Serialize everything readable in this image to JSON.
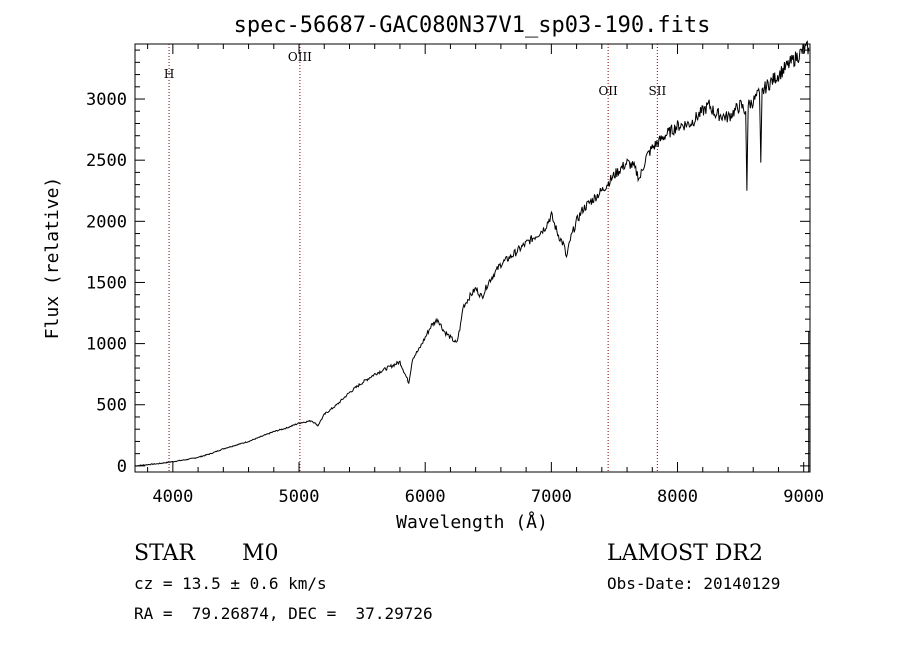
{
  "chart_data": {
    "type": "line",
    "title": "spec-56687-GAC080N37V1_sp03-190.fits",
    "xlabel": "Wavelength (Å)",
    "ylabel": "Flux (relative)",
    "xlim": [
      3700,
      9050
    ],
    "ylim": [
      -50,
      3450
    ],
    "x_ticks": [
      4000,
      5000,
      6000,
      7000,
      8000,
      9000
    ],
    "y_ticks": [
      0,
      500,
      1000,
      1500,
      2000,
      2500,
      3000
    ],
    "grid": false,
    "line_color": "#000000",
    "marker_color": "#8b0000",
    "spectral_lines": [
      {
        "label": "H",
        "wavelength": 3970
      },
      {
        "label": "OIII",
        "wavelength": 5007
      },
      {
        "label": "OII",
        "wavelength": 7450
      },
      {
        "label": "SII",
        "wavelength": 7840
      }
    ],
    "series": [
      {
        "x": [
          3700,
          3800,
          3900,
          4000,
          4100,
          4200,
          4300,
          4400,
          4500,
          4600,
          4700,
          4800,
          4900,
          5000,
          5050,
          5100,
          5150,
          5200,
          5300,
          5400,
          5500,
          5600,
          5700,
          5800,
          5870,
          5900,
          5950,
          6000,
          6050,
          6100,
          6150,
          6200,
          6250,
          6280,
          6300,
          6350,
          6400,
          6450,
          6500,
          6600,
          6700,
          6800,
          6900,
          6950,
          7000,
          7050,
          7100,
          7120,
          7150,
          7200,
          7250,
          7300,
          7400,
          7500,
          7550,
          7600,
          7650,
          7700,
          7750,
          7800,
          7900,
          8000,
          8100,
          8200,
          8250,
          8300,
          8400,
          8500,
          8540,
          8550,
          8560,
          8600,
          8650,
          8660,
          8670,
          8700,
          8800,
          8900,
          9000,
          9040
        ],
        "y": [
          0,
          10,
          20,
          35,
          50,
          70,
          100,
          140,
          170,
          200,
          240,
          280,
          310,
          350,
          360,
          370,
          330,
          420,
          500,
          600,
          680,
          750,
          800,
          850,
          680,
          880,
          950,
          1050,
          1150,
          1200,
          1100,
          1050,
          1000,
          1150,
          1300,
          1380,
          1450,
          1380,
          1500,
          1650,
          1730,
          1820,
          1900,
          1950,
          2050,
          1900,
          1800,
          1700,
          1850,
          2000,
          2100,
          2150,
          2250,
          2380,
          2430,
          2480,
          2450,
          2350,
          2520,
          2600,
          2700,
          2780,
          2800,
          2900,
          2950,
          2880,
          2850,
          2950,
          2900,
          2250,
          2950,
          2980,
          3050,
          2480,
          3050,
          3100,
          3200,
          3300,
          3400,
          3420
        ]
      }
    ]
  },
  "info": {
    "object_class": "STAR",
    "subclass": "M0",
    "survey": "LAMOST DR2",
    "redshift_text": "cz = 13.5 ± 0.6 km/s",
    "obs_date_text": "Obs-Date: 20140129",
    "coords_text": "RA =  79.26874, DEC =  37.29726"
  }
}
